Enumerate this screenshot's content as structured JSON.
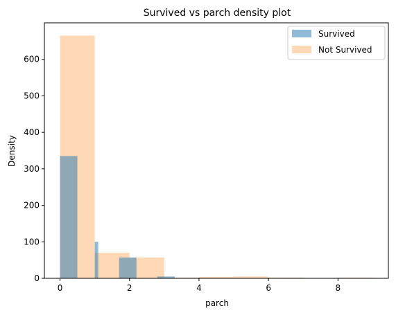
{
  "chart_data": {
    "type": "histogram",
    "title": "Survived vs parch density plot",
    "xlabel": "parch",
    "ylabel": "Density",
    "xlim": [
      -0.45,
      9.45
    ],
    "ylim": [
      0,
      700
    ],
    "xticks": [
      0,
      2,
      4,
      6,
      8
    ],
    "yticks": [
      0,
      100,
      200,
      300,
      400,
      500,
      600
    ],
    "legend_position": "top-right",
    "series": [
      {
        "name": "Survived",
        "color": "#1f77b4",
        "opacity": 0.5,
        "bins": [
          {
            "x0": 0.0,
            "x1": 0.5,
            "y": 335
          },
          {
            "x0": 0.5,
            "x1": 1.0,
            "y": 0
          },
          {
            "x0": 1.0,
            "x1": 1.1,
            "y": 100
          },
          {
            "x0": 1.1,
            "x1": 1.7,
            "y": 0
          },
          {
            "x0": 1.7,
            "x1": 2.2,
            "y": 57
          },
          {
            "x0": 2.2,
            "x1": 2.8,
            "y": 0
          },
          {
            "x0": 2.8,
            "x1": 3.3,
            "y": 5
          },
          {
            "x0": 3.3,
            "x1": 4.4,
            "y": 0
          }
        ]
      },
      {
        "name": "Not Survived",
        "color": "#ff7f0e",
        "opacity": 0.3,
        "bins": [
          {
            "x0": 0.0,
            "x1": 1.0,
            "y": 665
          },
          {
            "x0": 1.0,
            "x1": 2.0,
            "y": 70
          },
          {
            "x0": 2.0,
            "x1": 3.0,
            "y": 57
          },
          {
            "x0": 3.0,
            "x1": 4.0,
            "y": 2
          },
          {
            "x0": 4.0,
            "x1": 5.0,
            "y": 4
          },
          {
            "x0": 5.0,
            "x1": 6.0,
            "y": 5
          },
          {
            "x0": 6.0,
            "x1": 7.0,
            "y": 2
          },
          {
            "x0": 7.0,
            "x1": 8.0,
            "y": 0
          },
          {
            "x0": 8.0,
            "x1": 9.0,
            "y": 2
          }
        ]
      }
    ]
  }
}
